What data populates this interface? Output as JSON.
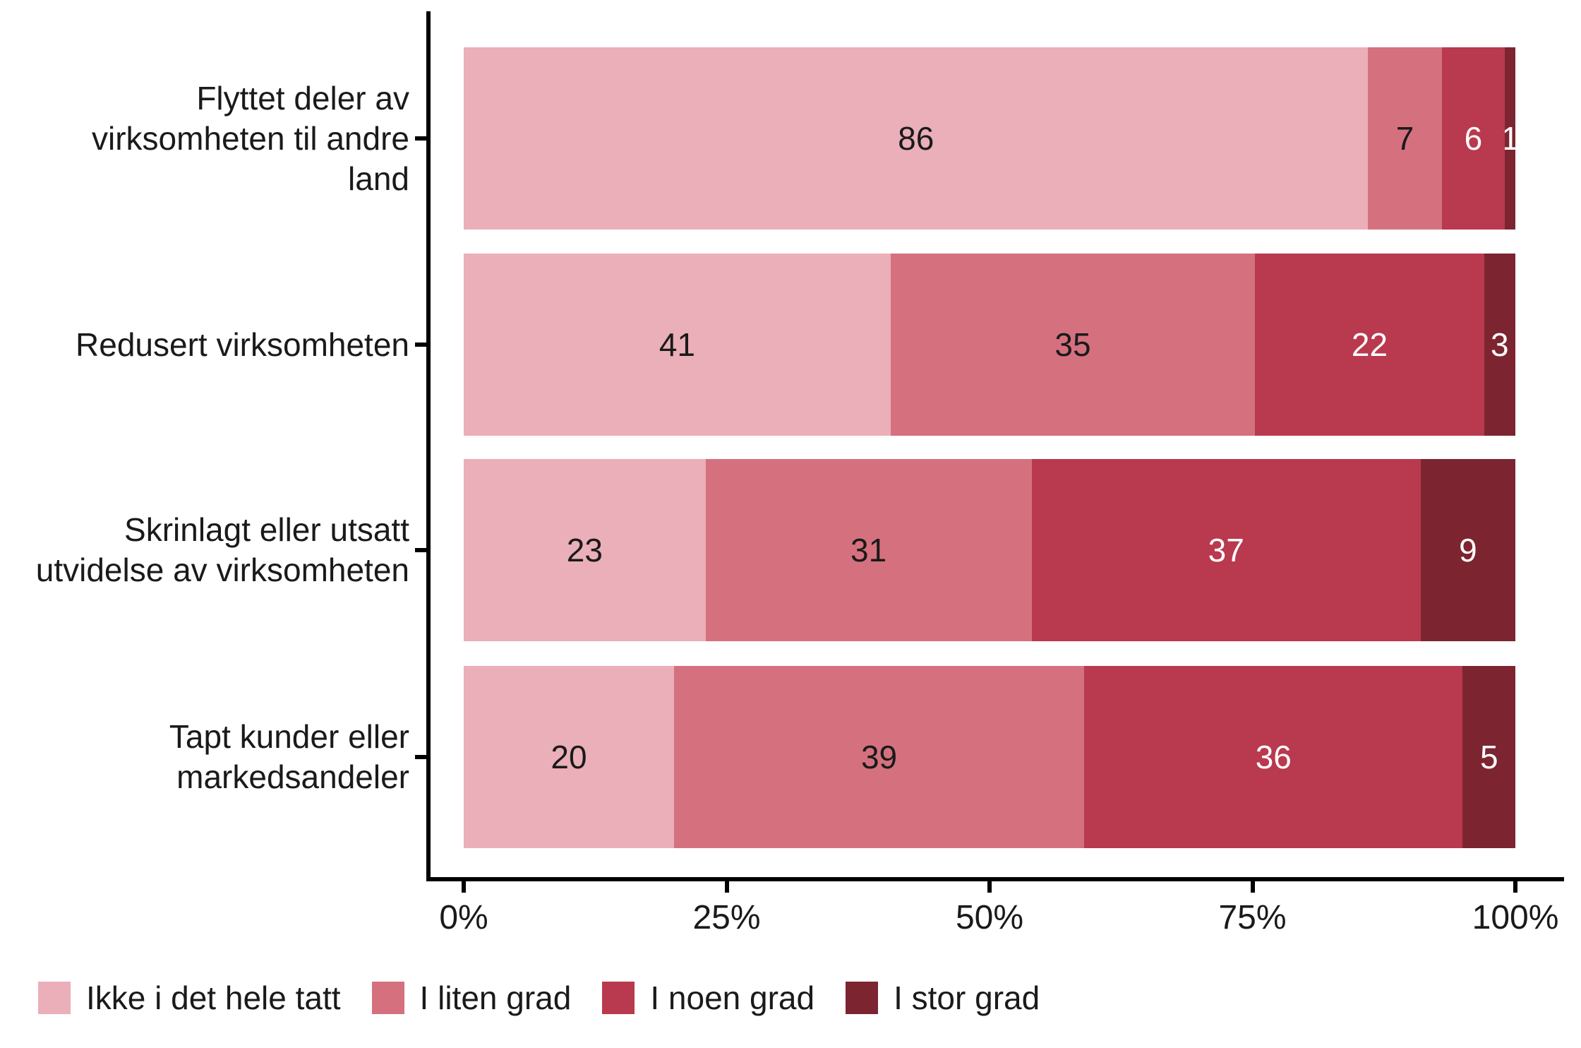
{
  "chart_data": {
    "type": "bar",
    "orientation": "horizontal",
    "stacked": true,
    "title": "",
    "xlabel": "",
    "ylabel": "",
    "grid": false,
    "legend_position": "bottom",
    "xlim": [
      0,
      100
    ],
    "x_ticks": [
      {
        "label": "0%",
        "value": 0
      },
      {
        "label": "25%",
        "value": 25
      },
      {
        "label": "50%",
        "value": 50
      },
      {
        "label": "75%",
        "value": 75
      },
      {
        "label": "100%",
        "value": 100
      }
    ],
    "categories": [
      "Flyttet deler av virksomheten til andre land",
      "Redusert virksomheten",
      "Skrinlagt eller utsatt utvidelse av virksomheten",
      "Tapt kunder eller markedsandeler"
    ],
    "category_label_lines": [
      [
        "Flyttet deler av",
        "virksomheten til andre",
        "land"
      ],
      [
        "Redusert virksomheten"
      ],
      [
        "Skrinlagt eller utsatt",
        "utvidelse av virksomheten"
      ],
      [
        "Tapt kunder eller",
        "markedsandeler"
      ]
    ],
    "series": [
      {
        "name": "Ikke i det hele tatt",
        "color": "#EAAFB8",
        "label_color": "#1a1a1a",
        "values": [
          86,
          41,
          23,
          20
        ]
      },
      {
        "name": "I liten grad",
        "color": "#D5717F",
        "label_color": "#1a1a1a",
        "values": [
          7,
          35,
          31,
          39
        ]
      },
      {
        "name": "I noen grad",
        "color": "#B9394E",
        "label_color": "#ffffff",
        "values": [
          6,
          22,
          37,
          36
        ]
      },
      {
        "name": "I stor grad",
        "color": "#7C2530",
        "label_color": "#ffffff",
        "values": [
          1,
          3,
          9,
          5
        ]
      }
    ]
  }
}
